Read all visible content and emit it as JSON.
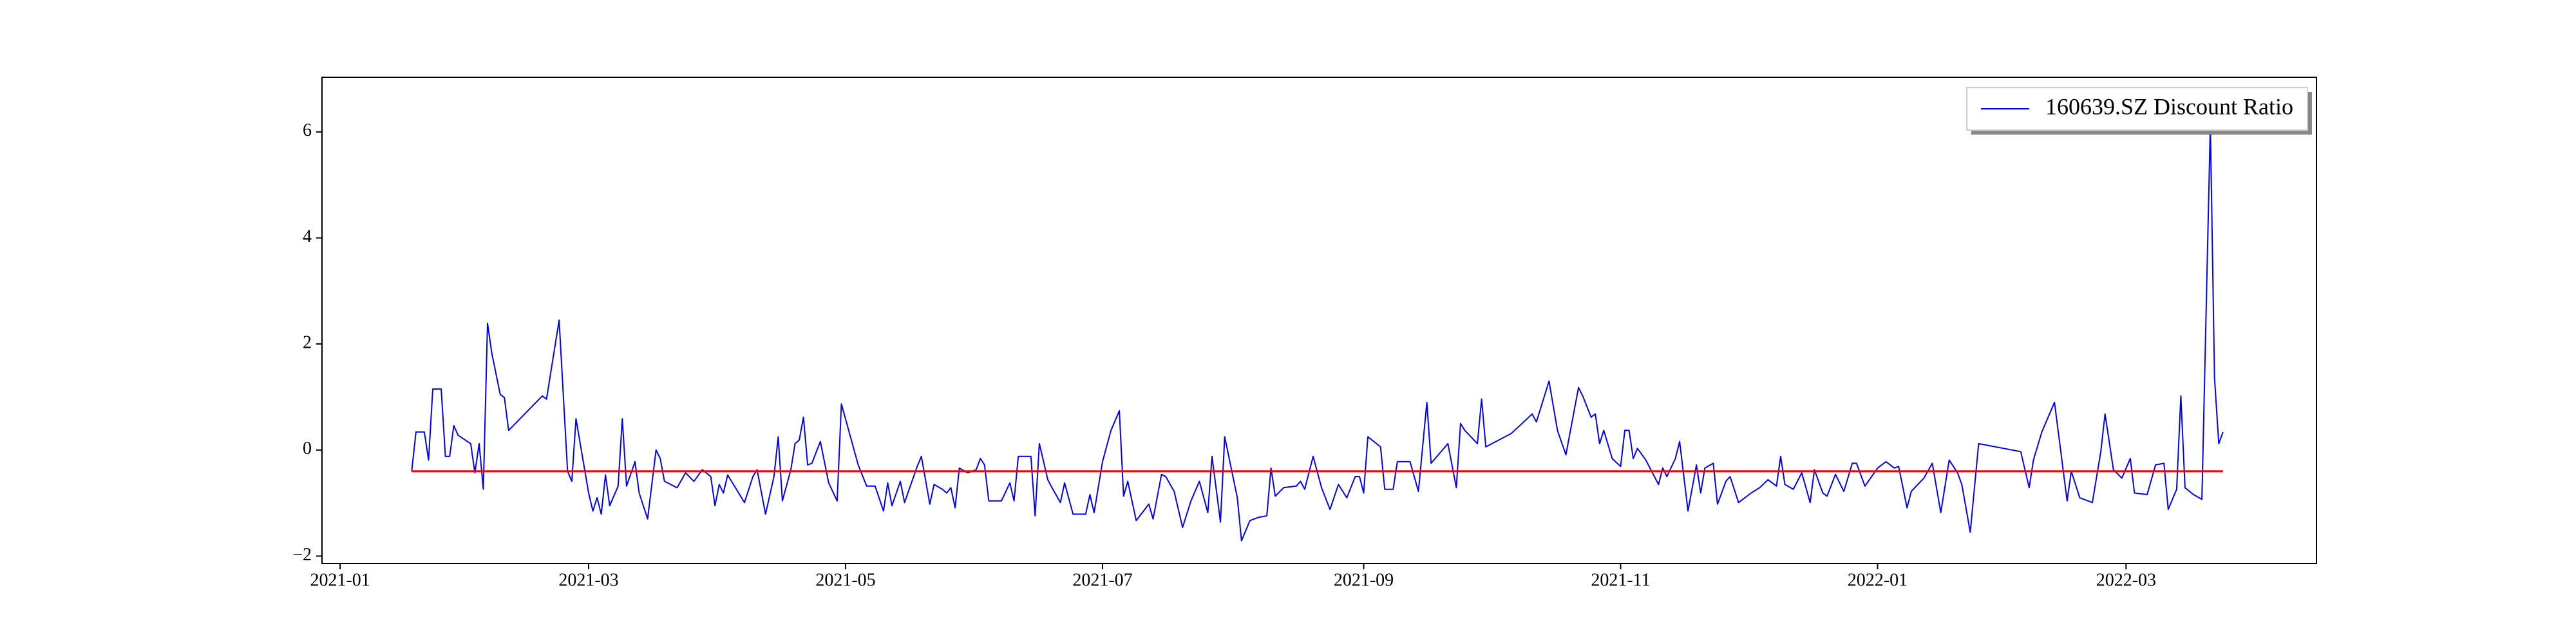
{
  "chart_data": {
    "type": "line",
    "x": [
      17,
      18,
      20,
      21,
      22,
      24,
      25,
      26,
      27,
      28,
      31,
      32,
      33,
      34,
      35,
      36,
      38,
      39,
      40,
      48,
      49,
      52,
      54,
      55,
      56,
      59,
      60,
      61,
      62,
      63,
      64,
      66,
      67,
      68,
      70,
      71,
      73,
      75,
      76,
      77,
      80,
      82,
      84,
      86,
      88,
      89,
      90,
      91,
      92,
      96,
      98,
      99,
      101,
      103,
      104,
      105,
      107,
      108,
      109,
      110,
      111,
      112,
      114,
      116,
      118,
      119,
      123,
      125,
      127,
      129,
      130,
      131,
      133,
      134,
      137,
      138,
      140,
      141,
      143,
      144,
      145,
      146,
      147,
      149,
      151,
      152,
      153,
      154,
      157,
      159,
      160,
      161,
      164,
      165,
      166,
      168,
      169,
      171,
      172,
      174,
      177,
      178,
      179,
      181,
      183,
      185,
      186,
      187,
      189,
      192,
      193,
      195,
      196,
      198,
      200,
      202,
      204,
      206,
      207,
      209,
      210,
      213,
      214,
      216,
      218,
      220,
      221,
      222,
      224,
      227,
      228,
      229,
      231,
      233,
      235,
      237,
      239,
      241,
      242,
      243,
      244,
      247,
      248,
      250,
      251,
      254,
      256,
      258,
      259,
      263,
      265,
      266,
      267,
      270,
      271,
      272,
      278,
      281,
      283,
      284,
      287,
      289,
      291,
      294,
      295,
      297,
      298,
      299,
      300,
      302,
      304,
      305,
      306,
      307,
      308,
      310,
      313,
      314,
      315,
      317,
      318,
      320,
      322,
      323,
      324,
      326,
      327,
      329,
      330,
      332,
      335,
      337,
      339,
      341,
      342,
      343,
      345,
      347,
      349,
      350,
      352,
      353,
      355,
      357,
      359,
      360,
      362,
      365,
      367,
      369,
      370,
      372,
      373,
      376,
      378,
      380,
      382,
      384,
      385,
      387,
      389,
      399,
      401,
      402,
      404,
      407,
      410,
      411,
      413,
      416,
      418,
      419,
      421,
      423,
      425,
      426,
      429,
      431,
      433,
      434,
      436,
      437,
      438,
      440,
      442,
      444,
      445,
      446,
      447
    ],
    "series": [
      {
        "name": "160639.SZ Discount Ratio",
        "color": "#0000ff",
        "values": [
          -0.4,
          0.34,
          0.34,
          -0.19,
          1.15,
          1.15,
          -0.12,
          -0.12,
          0.46,
          0.28,
          0.12,
          -0.43,
          0.12,
          -0.74,
          2.39,
          1.83,
          1.05,
          0.99,
          0.37,
          1.02,
          0.96,
          2.45,
          -0.4,
          -0.59,
          0.59,
          -0.81,
          -1.15,
          -0.9,
          -1.21,
          -0.47,
          -1.05,
          -0.68,
          0.59,
          -0.68,
          -0.22,
          -0.81,
          -1.3,
          0.0,
          -0.16,
          -0.59,
          -0.71,
          -0.43,
          -0.59,
          -0.37,
          -0.5,
          -1.05,
          -0.65,
          -0.81,
          -0.47,
          -0.99,
          -0.5,
          -0.37,
          -1.21,
          -0.5,
          0.25,
          -0.96,
          -0.37,
          0.12,
          0.19,
          0.62,
          -0.28,
          -0.25,
          0.16,
          -0.62,
          -0.96,
          0.87,
          -0.28,
          -0.68,
          -0.68,
          -1.15,
          -0.62,
          -1.05,
          -0.59,
          -0.99,
          -0.31,
          -0.12,
          -1.02,
          -0.65,
          -0.74,
          -0.81,
          -0.71,
          -1.09,
          -0.34,
          -0.43,
          -0.37,
          -0.16,
          -0.28,
          -0.96,
          -0.96,
          -0.62,
          -0.96,
          -0.12,
          -0.12,
          -1.24,
          0.12,
          -0.56,
          -0.71,
          -0.99,
          -0.62,
          -1.21,
          -1.21,
          -0.84,
          -1.18,
          -0.22,
          0.37,
          0.74,
          -0.87,
          -0.59,
          -1.33,
          -1.02,
          -1.3,
          -0.46,
          -0.5,
          -0.78,
          -1.46,
          -0.96,
          -0.59,
          -1.18,
          -0.12,
          -1.36,
          0.25,
          -0.9,
          -1.71,
          -1.33,
          -1.27,
          -1.24,
          -0.34,
          -0.87,
          -0.71,
          -0.68,
          -0.59,
          -0.74,
          -0.12,
          -0.71,
          -1.12,
          -0.65,
          -0.9,
          -0.5,
          -0.5,
          -0.81,
          0.25,
          0.06,
          -0.74,
          -0.74,
          -0.22,
          -0.22,
          -0.78,
          0.9,
          -0.25,
          0.12,
          -0.71,
          0.5,
          0.37,
          0.12,
          0.96,
          0.06,
          0.31,
          0.53,
          0.68,
          0.53,
          1.3,
          0.37,
          -0.09,
          1.18,
          1.02,
          0.62,
          0.68,
          0.12,
          0.37,
          -0.16,
          -0.31,
          0.37,
          0.37,
          -0.16,
          0.03,
          -0.19,
          -0.65,
          -0.34,
          -0.5,
          -0.16,
          0.16,
          -1.15,
          -0.28,
          -0.81,
          -0.34,
          -0.25,
          -1.02,
          -0.59,
          -0.5,
          -0.99,
          -0.81,
          -0.71,
          -0.56,
          -0.68,
          -0.12,
          -0.65,
          -0.74,
          -0.43,
          -0.99,
          -0.37,
          -0.81,
          -0.87,
          -0.46,
          -0.78,
          -0.25,
          -0.25,
          -0.68,
          -0.34,
          -0.22,
          -0.34,
          -0.31,
          -1.09,
          -0.78,
          -0.53,
          -0.25,
          -1.18,
          -0.19,
          -0.43,
          -0.65,
          -1.55,
          0.12,
          -0.03,
          -0.71,
          -0.19,
          0.34,
          0.9,
          -0.96,
          -0.4,
          -0.9,
          -0.99,
          -0.03,
          0.68,
          -0.37,
          -0.53,
          -0.16,
          -0.81,
          -0.84,
          -0.28,
          -0.25,
          -1.12,
          -0.74,
          1.02,
          -0.71,
          -0.84,
          -0.93,
          6.14,
          1.36,
          0.12,
          0.34
        ]
      }
    ],
    "reference_line": {
      "x": [
        17,
        447
      ],
      "values": [
        -0.4,
        -0.4
      ],
      "color": "#ff0000"
    },
    "xlim": [
      -4.3,
      469.2
    ],
    "xticks": [
      {
        "value": 0,
        "label": "2021-01"
      },
      {
        "value": 59,
        "label": "2021-03"
      },
      {
        "value": 120,
        "label": "2021-05"
      },
      {
        "value": 181,
        "label": "2021-07"
      },
      {
        "value": 243,
        "label": "2021-09"
      },
      {
        "value": 304,
        "label": "2021-11"
      },
      {
        "value": 365,
        "label": "2022-01"
      },
      {
        "value": 424,
        "label": "2022-03"
      }
    ],
    "ylim": [
      -2.14,
      7.03
    ],
    "yticks": [
      {
        "value": -2,
        "label": "−2"
      },
      0,
      2,
      4,
      6
    ],
    "legend": "upper right"
  }
}
